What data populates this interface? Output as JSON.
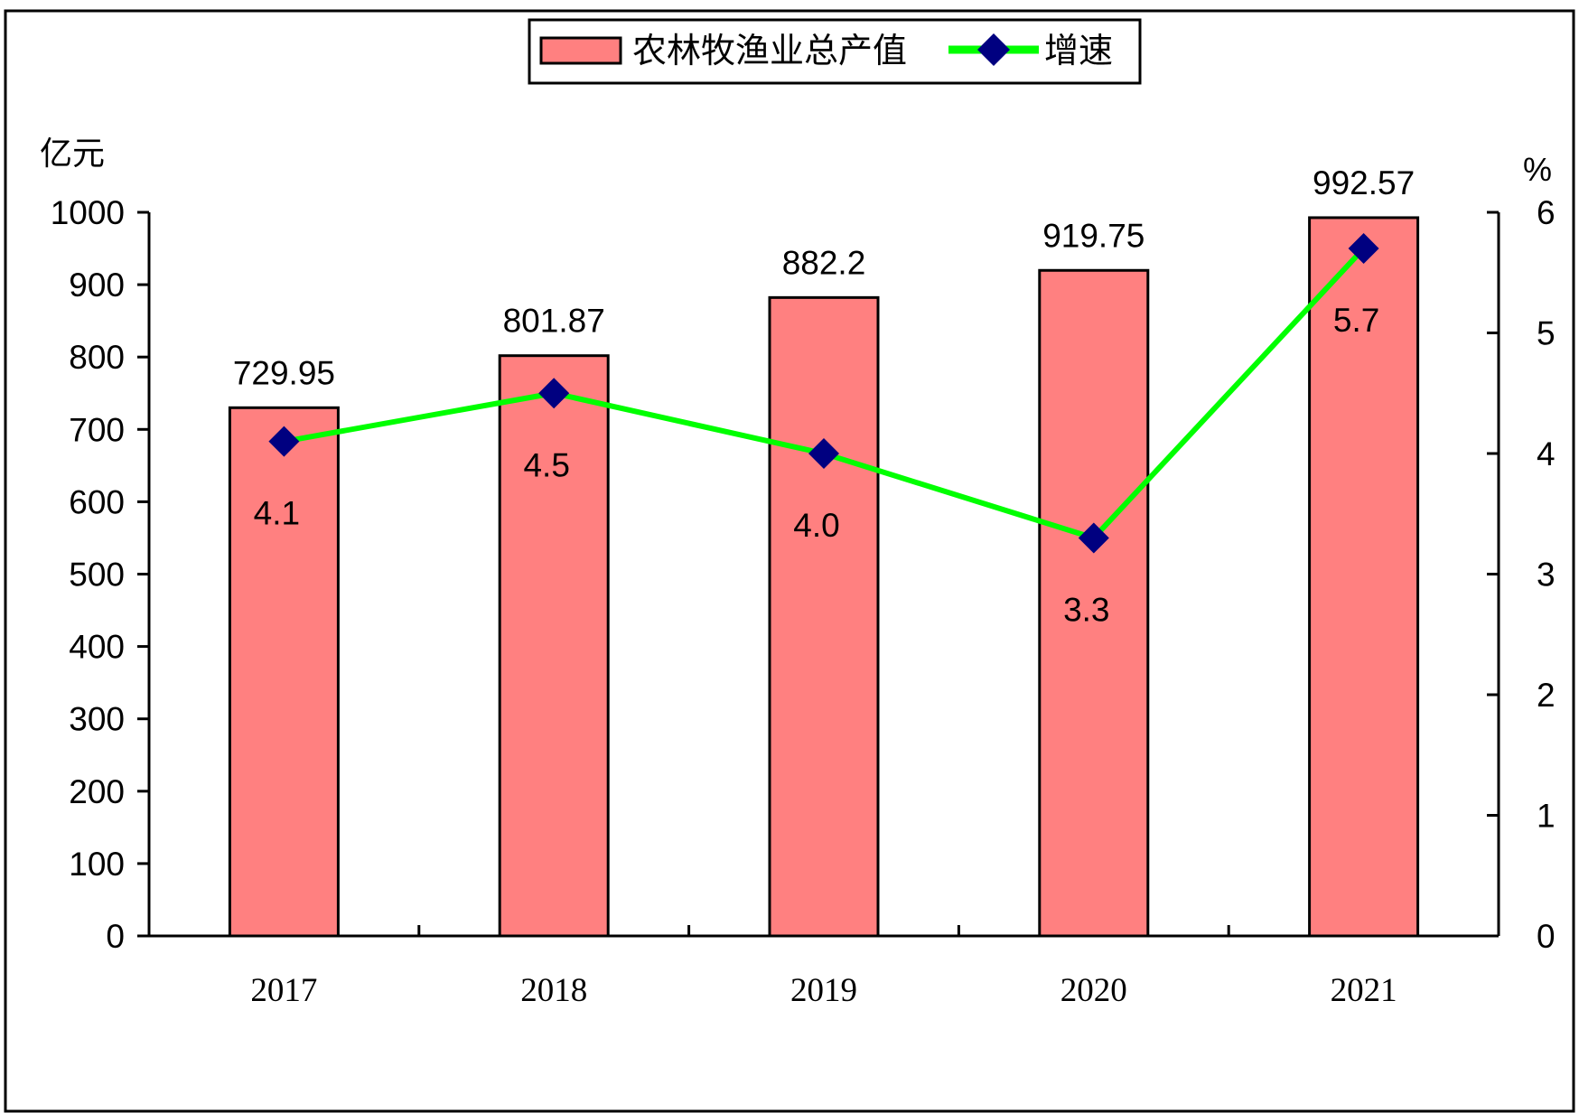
{
  "chart_data": {
    "type": "bar",
    "categories": [
      "2017",
      "2018",
      "2019",
      "2020",
      "2021"
    ],
    "series": [
      {
        "name": "农林牧渔业总产值",
        "type": "bar",
        "axis": "left",
        "values": [
          729.95,
          801.87,
          882.2,
          919.75,
          992.57
        ],
        "labels": [
          "729.95",
          "801.87",
          "882.2",
          "919.75",
          "992.57"
        ]
      },
      {
        "name": "增速",
        "type": "line",
        "axis": "right",
        "values": [
          4.1,
          4.5,
          4.0,
          3.3,
          5.7
        ],
        "labels": [
          "4.1",
          "4.5",
          "4.0",
          "3.3",
          "5.7"
        ]
      }
    ],
    "y_left": {
      "unit": "亿元",
      "ylim": [
        0,
        1000
      ],
      "ticks": [
        "0",
        "100",
        "200",
        "300",
        "400",
        "500",
        "600",
        "700",
        "800",
        "900",
        "1000"
      ]
    },
    "y_right": {
      "unit": "%",
      "ylim": [
        0,
        6
      ],
      "ticks": [
        "0",
        "1",
        "2",
        "3",
        "4",
        "5",
        "6"
      ]
    },
    "legend_position": "top-center",
    "grid": false,
    "colors": {
      "bar_fill": "#ff8080",
      "bar_stroke": "#000000",
      "line": "#00ff00",
      "marker": "#000080"
    }
  }
}
